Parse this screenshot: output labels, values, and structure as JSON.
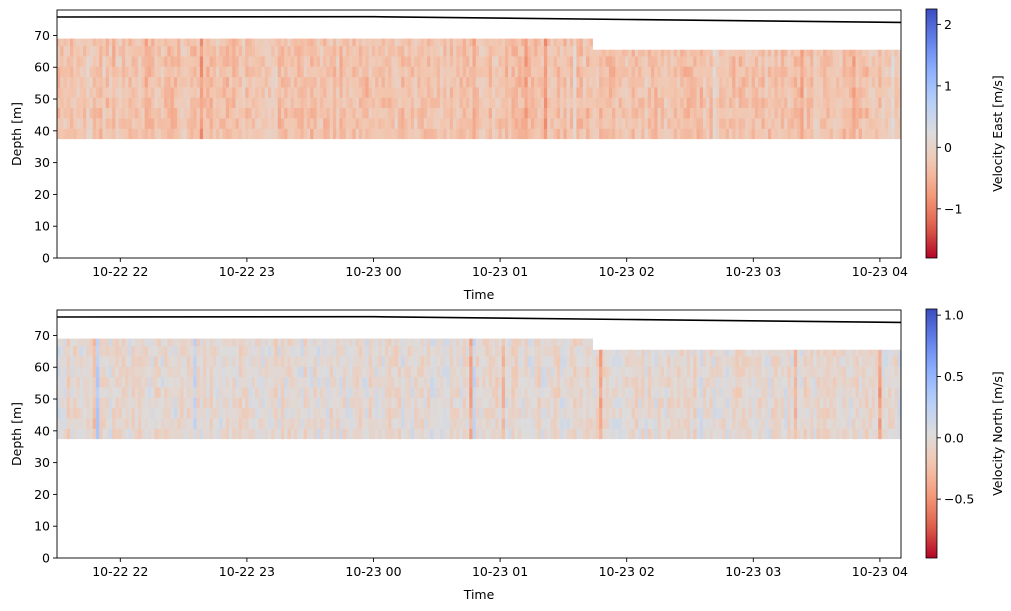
{
  "chart_data": [
    {
      "type": "heatmap",
      "xlabel": "Time",
      "ylabel": "Depth [m]",
      "x_range": [
        "2024-10-22 21:30",
        "2024-10-23 04:10"
      ],
      "x_ticks": [
        {
          "t": "2024-10-22 22:00",
          "label": "10-22 22"
        },
        {
          "t": "2024-10-22 23:00",
          "label": "10-22 23"
        },
        {
          "t": "2024-10-23 00:00",
          "label": "10-23 00"
        },
        {
          "t": "2024-10-23 01:00",
          "label": "10-23 01"
        },
        {
          "t": "2024-10-23 02:00",
          "label": "10-23 02"
        },
        {
          "t": "2024-10-23 03:00",
          "label": "10-23 03"
        },
        {
          "t": "2024-10-23 04:00",
          "label": "10-23 04"
        }
      ],
      "ylim": [
        0,
        78
      ],
      "y_ticks": [
        0,
        10,
        20,
        30,
        40,
        50,
        60,
        70
      ],
      "grid": false,
      "data_depth_bottom": 37.5,
      "data_depth_top_before": 69,
      "data_depth_top_after": 65.5,
      "depth_change_time": "2024-10-23 01:44",
      "surface_line": {
        "color": "#000000",
        "points": [
          {
            "t": "2024-10-22 21:30",
            "depth": 75.8
          },
          {
            "t": "2024-10-23 00:00",
            "depth": 75.9
          },
          {
            "t": "2024-10-23 02:00",
            "depth": 75.0
          },
          {
            "t": "2024-10-23 04:10",
            "depth": 74.1
          }
        ]
      },
      "colorbar": {
        "label": "Velocity East [m/s]",
        "vmin": -1.8,
        "vmax": 2.25,
        "ticks": [
          {
            "v": 2,
            "label": "2"
          },
          {
            "v": 1,
            "label": "1"
          },
          {
            "v": 0,
            "label": "0"
          },
          {
            "v": -1,
            "label": "−1"
          }
        ],
        "colormap": "coolwarm_r"
      },
      "field_bias": -0.3,
      "field_spread": 0.25,
      "seed": 7
    },
    {
      "type": "heatmap",
      "xlabel": "Time",
      "ylabel": "Depth [m]",
      "x_range": [
        "2024-10-22 21:30",
        "2024-10-23 04:10"
      ],
      "x_ticks": [
        {
          "t": "2024-10-22 22:00",
          "label": "10-22 22"
        },
        {
          "t": "2024-10-22 23:00",
          "label": "10-22 23"
        },
        {
          "t": "2024-10-23 00:00",
          "label": "10-23 00"
        },
        {
          "t": "2024-10-23 01:00",
          "label": "10-23 01"
        },
        {
          "t": "2024-10-23 02:00",
          "label": "10-23 02"
        },
        {
          "t": "2024-10-23 03:00",
          "label": "10-23 03"
        },
        {
          "t": "2024-10-23 04:00",
          "label": "10-23 04"
        }
      ],
      "ylim": [
        0,
        78
      ],
      "y_ticks": [
        0,
        10,
        20,
        30,
        40,
        50,
        60,
        70
      ],
      "grid": false,
      "data_depth_bottom": 37.5,
      "data_depth_top_before": 69,
      "data_depth_top_after": 65.5,
      "depth_change_time": "2024-10-23 01:44",
      "surface_line": {
        "color": "#000000",
        "points": [
          {
            "t": "2024-10-22 21:30",
            "depth": 75.8
          },
          {
            "t": "2024-10-23 00:00",
            "depth": 75.9
          },
          {
            "t": "2024-10-23 02:00",
            "depth": 75.0
          },
          {
            "t": "2024-10-23 04:10",
            "depth": 74.1
          }
        ]
      },
      "colorbar": {
        "label": "Velocity North [m/s]",
        "vmin": -0.98,
        "vmax": 1.05,
        "ticks": [
          {
            "v": 1.0,
            "label": "1.0"
          },
          {
            "v": 0.5,
            "label": "0.5"
          },
          {
            "v": 0.0,
            "label": "0.0"
          },
          {
            "v": -0.5,
            "label": "−0.5"
          }
        ],
        "colormap": "coolwarm_r"
      },
      "field_bias": -0.02,
      "field_spread": 0.14,
      "seed": 19
    }
  ]
}
